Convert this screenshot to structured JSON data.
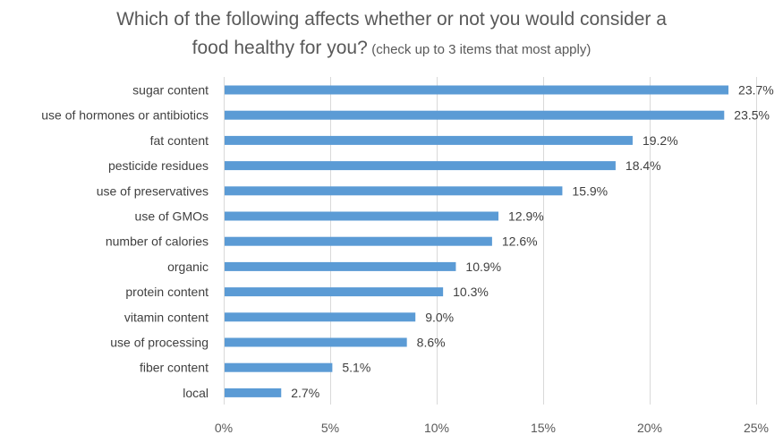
{
  "chart_data": {
    "type": "bar",
    "orientation": "horizontal",
    "title_main_line1": "Which of the following affects whether or not you would consider a",
    "title_main_line2": "food healthy for you?",
    "title_sub": "(check up to 3 items that most apply)",
    "categories": [
      "sugar content",
      "use of hormones or antibiotics",
      "fat content",
      "pesticide residues",
      "use of preservatives",
      "use of GMOs",
      "number of calories",
      "organic",
      "protein content",
      "vitamin content",
      "use of processing",
      "fiber content",
      "local"
    ],
    "values": [
      23.7,
      23.5,
      19.2,
      18.4,
      15.9,
      12.9,
      12.6,
      10.9,
      10.3,
      9.0,
      8.6,
      5.1,
      2.7
    ],
    "value_labels": [
      "23.7%",
      "23.5%",
      "19.2%",
      "18.4%",
      "15.9%",
      "12.9%",
      "12.6%",
      "10.9%",
      "10.3%",
      "9.0%",
      "8.6%",
      "5.1%",
      "2.7%"
    ],
    "x_ticks": [
      0,
      5,
      10,
      15,
      20,
      25
    ],
    "x_tick_labels": [
      "0%",
      "5%",
      "10%",
      "15%",
      "20%",
      "25%"
    ],
    "xlim": [
      0,
      25
    ],
    "xlabel": "",
    "ylabel": "",
    "grid": true,
    "legend": "none",
    "bar_color": "#5b9bd5"
  }
}
